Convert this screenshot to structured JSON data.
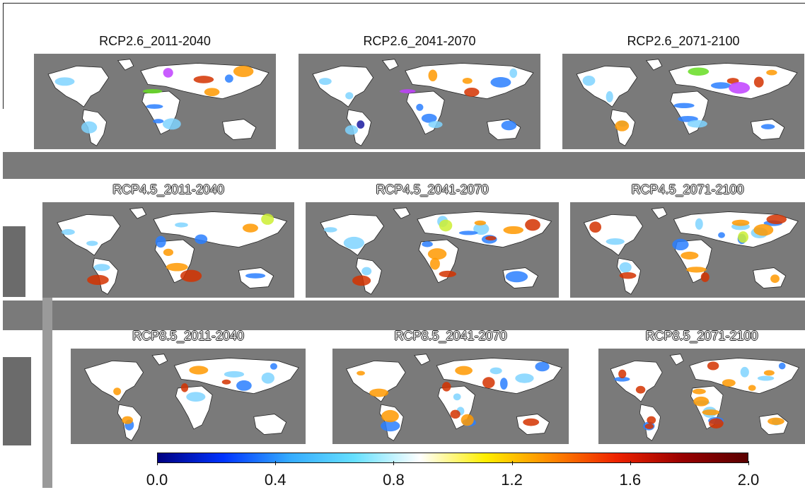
{
  "chart_data": {
    "type": "heatmap",
    "panels": [
      {
        "title": "RCP2.6_2011-2040",
        "scenario": "RCP2.6",
        "period": "2011-2040"
      },
      {
        "title": "RCP2.6_2041-2070",
        "scenario": "RCP2.6",
        "period": "2041-2070"
      },
      {
        "title": "RCP2.6_2071-2100",
        "scenario": "RCP2.6",
        "period": "2071-2100"
      },
      {
        "title": "RCP4.5_2011-2040",
        "scenario": "RCP4.5",
        "period": "2011-2040"
      },
      {
        "title": "RCP4.5_2041-2070",
        "scenario": "RCP4.5",
        "period": "2041-2070"
      },
      {
        "title": "RCP4.5_2071-2100",
        "scenario": "RCP4.5",
        "period": "2071-2100"
      },
      {
        "title": "RCP8.5_2011-2040",
        "scenario": "RCP8.5",
        "period": "2011-2040"
      },
      {
        "title": "RCP8.5_2041-2070",
        "scenario": "RCP8.5",
        "period": "2041-2070"
      },
      {
        "title": "RCP8.5_2071-2100",
        "scenario": "RCP8.5",
        "period": "2071-2100"
      }
    ],
    "colorbar": {
      "min": 0.0,
      "max": 2.0,
      "ticks": [
        "0.0",
        "0.4",
        "0.8",
        "1.2",
        "1.6",
        "2.0"
      ],
      "tick_values": [
        0.0,
        0.4,
        0.8,
        1.2,
        1.6,
        2.0
      ],
      "colors": [
        "#000080",
        "#0033ff",
        "#33aaff",
        "#66e0ff",
        "#ffffff",
        "#ffee00",
        "#ff8800",
        "#ee2200",
        "#990000",
        "#5a0000"
      ]
    },
    "colors": {
      "ocean": "#7a7a7a",
      "land_neutral": "#ffffff",
      "wet_blue": "#2a7fff",
      "light_blue": "#7fd4ff",
      "dry_red": "#d43300",
      "orange": "#ff9900",
      "violet": "#c040ff",
      "green": "#66dd22",
      "yellow_green": "#ccee33",
      "dark_blue": "#1a1aa0"
    }
  }
}
